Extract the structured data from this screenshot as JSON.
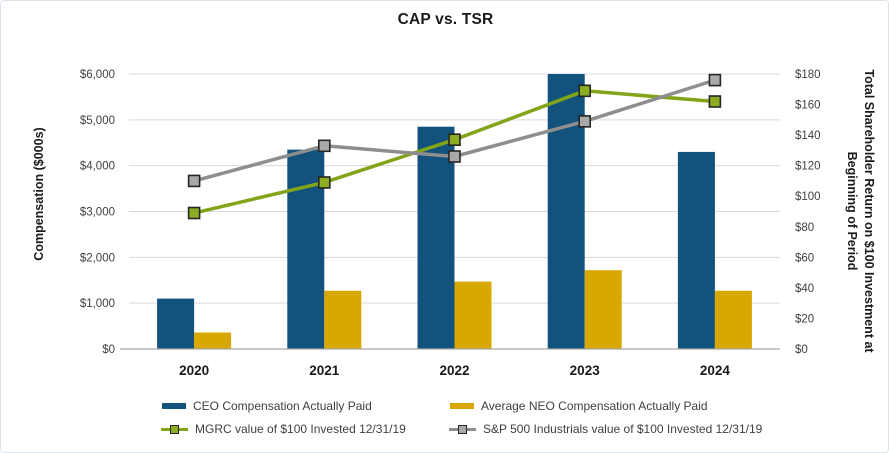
{
  "chart": {
    "title": "CAP vs. TSR",
    "background": "#ffffff",
    "gridline_color": "#d9d9d9",
    "baseline_color": "#a6a6a6",
    "tick_label_color": "#404040",
    "text_color": "#1a1a1a"
  },
  "chart_data": {
    "type": "bar+line combo",
    "title": "CAP vs. TSR",
    "categories": [
      "2020",
      "2021",
      "2022",
      "2023",
      "2024"
    ],
    "series": [
      {
        "name": "CEO Compensation Actually Paid",
        "type": "bar",
        "axis": "left",
        "color": "#12527d",
        "values": [
          1100,
          4350,
          4850,
          6000,
          4300
        ]
      },
      {
        "name": "Average NEO Compensation Actually Paid",
        "type": "bar",
        "axis": "left",
        "color": "#d8a800",
        "values": [
          360,
          1270,
          1470,
          1720,
          1270
        ]
      },
      {
        "name": "MGRC value of $100 Invested 12/31/19",
        "type": "line",
        "axis": "right",
        "color": "#82a419",
        "marker_fill": "#8cac21",
        "marker_stroke": "#262626",
        "values": [
          89,
          109,
          137,
          169,
          162
        ]
      },
      {
        "name": "S&P 500 Industrials value of $100 Invested 12/31/19",
        "type": "line",
        "axis": "right",
        "color": "#8e8e8e",
        "marker_fill": "#a9a9a9",
        "marker_stroke": "#262626",
        "values": [
          110,
          133,
          126,
          149,
          176
        ]
      }
    ],
    "ylabel_left": "Compensation ($000s)",
    "ylabel_right_lines": [
      "Total Shareholder Return on $100 Investment at",
      "Beginning of Period"
    ],
    "left_axis_ticks": [
      "$0",
      "$1,000",
      "$2,000",
      "$3,000",
      "$4,000",
      "$5,000",
      "$6,000"
    ],
    "right_axis_ticks": [
      "$0",
      "$20",
      "$40",
      "$60",
      "$80",
      "$100",
      "$120",
      "$140",
      "$160",
      "$180"
    ],
    "ylim_left": [
      0,
      6000
    ],
    "ylim_right": [
      0,
      180
    ],
    "grid": true,
    "legend_position": "bottom"
  }
}
